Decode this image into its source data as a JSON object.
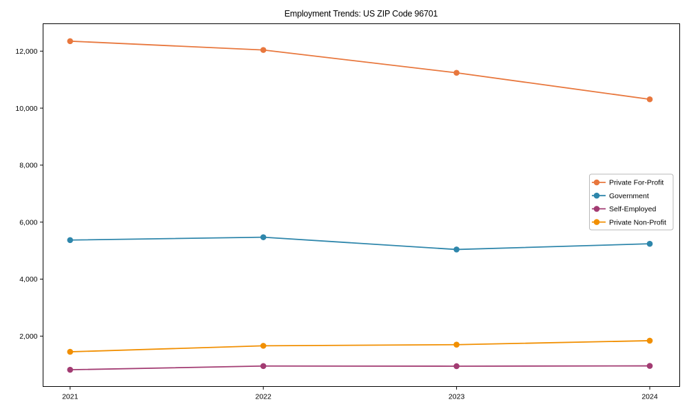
{
  "title": "Employment Trends: US ZIP Code 96701",
  "chart_data": {
    "type": "line",
    "title": "Employment Trends: US ZIP Code 96701",
    "xlabel": "",
    "ylabel": "",
    "x": [
      2021,
      2022,
      2023,
      2024
    ],
    "x_tick_labels": [
      "2021",
      "2022",
      "2023",
      "2024"
    ],
    "series": [
      {
        "name": "Private For-Profit",
        "color": "#E8773D",
        "values": [
          12350,
          12040,
          11240,
          10310
        ]
      },
      {
        "name": "Government",
        "color": "#2E86AB",
        "values": [
          5370,
          5470,
          5040,
          5240
        ]
      },
      {
        "name": "Self-Employed",
        "color": "#A23B72",
        "values": [
          820,
          950,
          945,
          955
        ]
      },
      {
        "name": "Private Non-Profit",
        "color": "#F18F01",
        "values": [
          1450,
          1660,
          1700,
          1840
        ]
      }
    ],
    "xlim": [
      2020.86,
      2024.155
    ],
    "ylim": [
      232,
      12961
    ],
    "yticks": [
      2000,
      4000,
      6000,
      8000,
      10000,
      12000
    ],
    "ytick_labels": [
      "2,000",
      "4,000",
      "6,000",
      "8,000",
      "10,000",
      "12,000"
    ],
    "grid": false,
    "marker": "o",
    "legend_position": "center right",
    "axis_color": "#000000",
    "legend_border_color": "#b8b8b8",
    "legend_background": "#ffffff"
  }
}
